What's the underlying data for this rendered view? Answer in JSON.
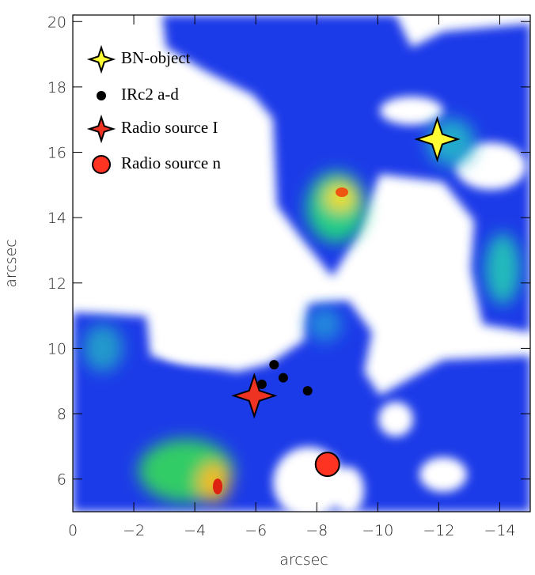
{
  "chart_data": {
    "type": "scatter",
    "xlabel": "arcsec",
    "ylabel": "arcsec",
    "xlim": [
      0,
      -15
    ],
    "ylim": [
      5,
      20.2
    ],
    "xticks": [
      0,
      {
        "value": -2,
        "label": "−2"
      },
      {
        "value": -4,
        "label": "−4"
      },
      {
        "value": -6,
        "label": "−6"
      },
      {
        "value": -8,
        "label": "−8"
      },
      {
        "value": -10,
        "label": "−10"
      },
      {
        "value": -12,
        "label": "−12"
      },
      {
        "value": -14,
        "label": "−14"
      }
    ],
    "yticks": [
      6,
      8,
      10,
      12,
      14,
      16,
      18,
      20
    ],
    "legend": "upper left",
    "series": [
      {
        "name": "BN-object",
        "color": "#ffff33",
        "marker": "star",
        "x": [
          -11.95
        ],
        "values": [
          16.4
        ]
      },
      {
        "name": "IRc2 a-d",
        "color": "#000000",
        "marker": "dot",
        "x": [
          -6.2,
          -6.6,
          -6.9,
          -7.7
        ],
        "values": [
          8.9,
          9.5,
          9.1,
          8.7
        ]
      },
      {
        "name": "Radio source I",
        "color": "#ee3322",
        "marker": "star",
        "x": [
          -5.95
        ],
        "values": [
          8.55
        ]
      },
      {
        "name": "Radio source n",
        "color": "#ff3322",
        "marker": "circle",
        "x": [
          -8.35
        ],
        "values": [
          6.45
        ]
      }
    ]
  }
}
